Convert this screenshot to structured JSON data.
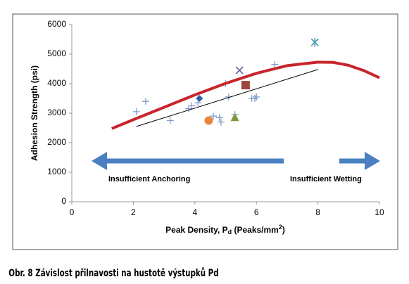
{
  "chart_data": {
    "type": "scatter",
    "x_label": [
      "Peak Density, P",
      "d",
      " (Peaks/mm",
      "2",
      ")"
    ],
    "y_label": "Adhesion Strength (psi)",
    "xlim": [
      0,
      10
    ],
    "xticks": [
      0,
      2,
      4,
      6,
      8,
      10
    ],
    "ylim": [
      0,
      6000
    ],
    "yticks": [
      0,
      1000,
      2000,
      3000,
      4000,
      5000,
      6000
    ],
    "grid": false,
    "annotations": [
      "Insufficient Anchoring",
      "Insufficient Wetting"
    ],
    "series": [
      {
        "marker": "plus",
        "color": "#7f9cc9",
        "x": [
          2.1,
          2.4,
          3.2,
          3.8,
          3.9,
          4.1,
          4.6,
          4.8,
          4.85,
          5.0,
          5.1,
          5.3,
          5.85,
          5.95,
          6.0,
          6.6
        ],
        "values": [
          3050,
          3400,
          2750,
          3150,
          3250,
          3350,
          2900,
          2850,
          2700,
          4000,
          3550,
          2950,
          3500,
          3500,
          3550,
          4650
        ]
      },
      {
        "marker": "diamond",
        "color": "#2e5fa8",
        "x": [
          4.15
        ],
        "values": [
          3500
        ]
      },
      {
        "marker": "x",
        "color": "#6a5aa0",
        "x": [
          5.45
        ],
        "values": [
          4450
        ]
      },
      {
        "marker": "square",
        "color": "#a0443f",
        "x": [
          5.65
        ],
        "values": [
          3950
        ]
      },
      {
        "marker": "circle",
        "color": "#e8853a",
        "x": [
          4.45
        ],
        "values": [
          2750
        ]
      },
      {
        "marker": "triangle",
        "color": "#7a9a3d",
        "x": [
          5.3
        ],
        "values": [
          2850
        ]
      },
      {
        "marker": "asterisk",
        "color": "#3d9bb0",
        "x": [
          7.9
        ],
        "values": [
          5400
        ]
      },
      {
        "marker": "line",
        "color": "#c8242b",
        "width": 4,
        "x": [
          1.3,
          2,
          3,
          4,
          5,
          6,
          7,
          8,
          8.5,
          9,
          9.5,
          10
        ],
        "values": [
          2480,
          2780,
          3200,
          3620,
          4010,
          4350,
          4610,
          4730,
          4720,
          4620,
          4440,
          4200
        ]
      },
      {
        "marker": "line",
        "color": "#000000",
        "width": 1,
        "x": [
          2.1,
          8.0
        ],
        "values": [
          2550,
          4480
        ]
      }
    ]
  },
  "caption": "Obr. 8 Závislost přilnavosti na hustotě výstupků Pd"
}
